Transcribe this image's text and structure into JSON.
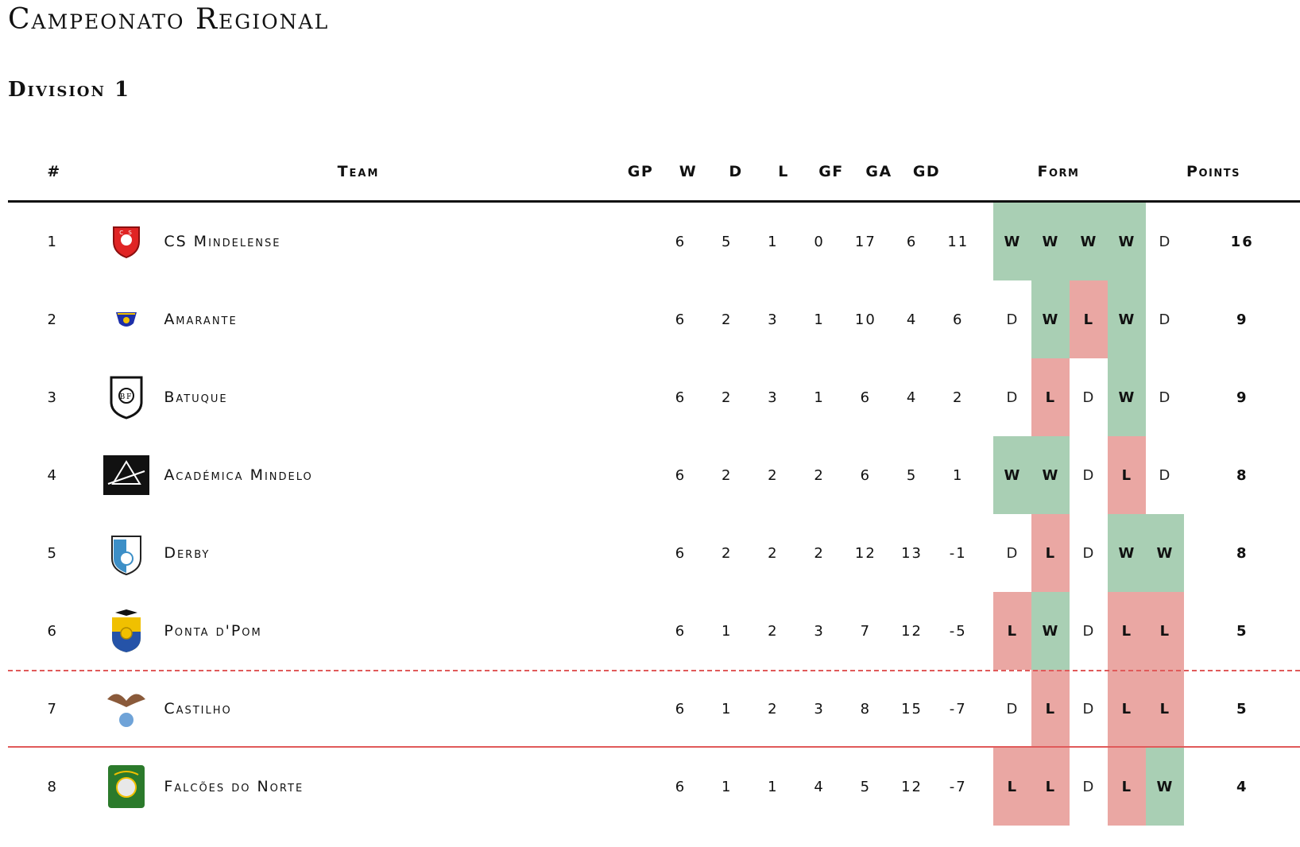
{
  "title": "Campeonato Regional",
  "subtitle": "Division 1",
  "headers": {
    "rank": "#",
    "team": "Team",
    "gp": "GP",
    "w": "W",
    "d": "D",
    "l": "L",
    "gf": "GF",
    "ga": "GA",
    "gd": "GD",
    "form": "Form",
    "points": "Points"
  },
  "rows": [
    {
      "rank": "1",
      "team": "CS Mindelense",
      "logo": "cs-mindelense-crest-icon",
      "gp": "6",
      "w": "5",
      "d": "1",
      "l": "0",
      "gf": "17",
      "ga": "6",
      "gd": "11",
      "form": [
        "W",
        "W",
        "W",
        "W",
        "D"
      ],
      "points": "16"
    },
    {
      "rank": "2",
      "team": "Amarante",
      "logo": "amarante-crest-icon",
      "gp": "6",
      "w": "2",
      "d": "3",
      "l": "1",
      "gf": "10",
      "ga": "4",
      "gd": "6",
      "form": [
        "D",
        "W",
        "L",
        "W",
        "D"
      ],
      "points": "9"
    },
    {
      "rank": "3",
      "team": "Batuque",
      "logo": "batuque-crest-icon",
      "gp": "6",
      "w": "2",
      "d": "3",
      "l": "1",
      "gf": "6",
      "ga": "4",
      "gd": "2",
      "form": [
        "D",
        "L",
        "D",
        "W",
        "D"
      ],
      "points": "9"
    },
    {
      "rank": "4",
      "team": "Académica Mindelo",
      "logo": "academica-mindelo-crest-icon",
      "gp": "6",
      "w": "2",
      "d": "2",
      "l": "2",
      "gf": "6",
      "ga": "5",
      "gd": "1",
      "form": [
        "W",
        "W",
        "D",
        "L",
        "D"
      ],
      "points": "8"
    },
    {
      "rank": "5",
      "team": "Derby",
      "logo": "derby-crest-icon",
      "gp": "6",
      "w": "2",
      "d": "2",
      "l": "2",
      "gf": "12",
      "ga": "13",
      "gd": "-1",
      "form": [
        "D",
        "L",
        "D",
        "W",
        "W"
      ],
      "points": "8"
    },
    {
      "rank": "6",
      "team": "Ponta d'Pom",
      "logo": "ponta-dpom-crest-icon",
      "gp": "6",
      "w": "1",
      "d": "2",
      "l": "3",
      "gf": "7",
      "ga": "12",
      "gd": "-5",
      "form": [
        "L",
        "W",
        "D",
        "L",
        "L"
      ],
      "points": "5"
    },
    {
      "rank": "7",
      "team": "Castilho",
      "logo": "castilho-crest-icon",
      "gp": "6",
      "w": "1",
      "d": "2",
      "l": "3",
      "gf": "8",
      "ga": "15",
      "gd": "-7",
      "form": [
        "D",
        "L",
        "D",
        "L",
        "L"
      ],
      "points": "5"
    },
    {
      "rank": "8",
      "team": "Falcões do Norte",
      "logo": "falcoes-do-norte-crest-icon",
      "gp": "6",
      "w": "1",
      "d": "1",
      "l": "4",
      "gf": "5",
      "ga": "12",
      "gd": "-7",
      "form": [
        "L",
        "L",
        "D",
        "L",
        "W"
      ],
      "points": "4"
    }
  ],
  "colors": {
    "win": "#a9cfb4",
    "loss": "#eaa7a3",
    "zone_line": "#e05a5a"
  }
}
